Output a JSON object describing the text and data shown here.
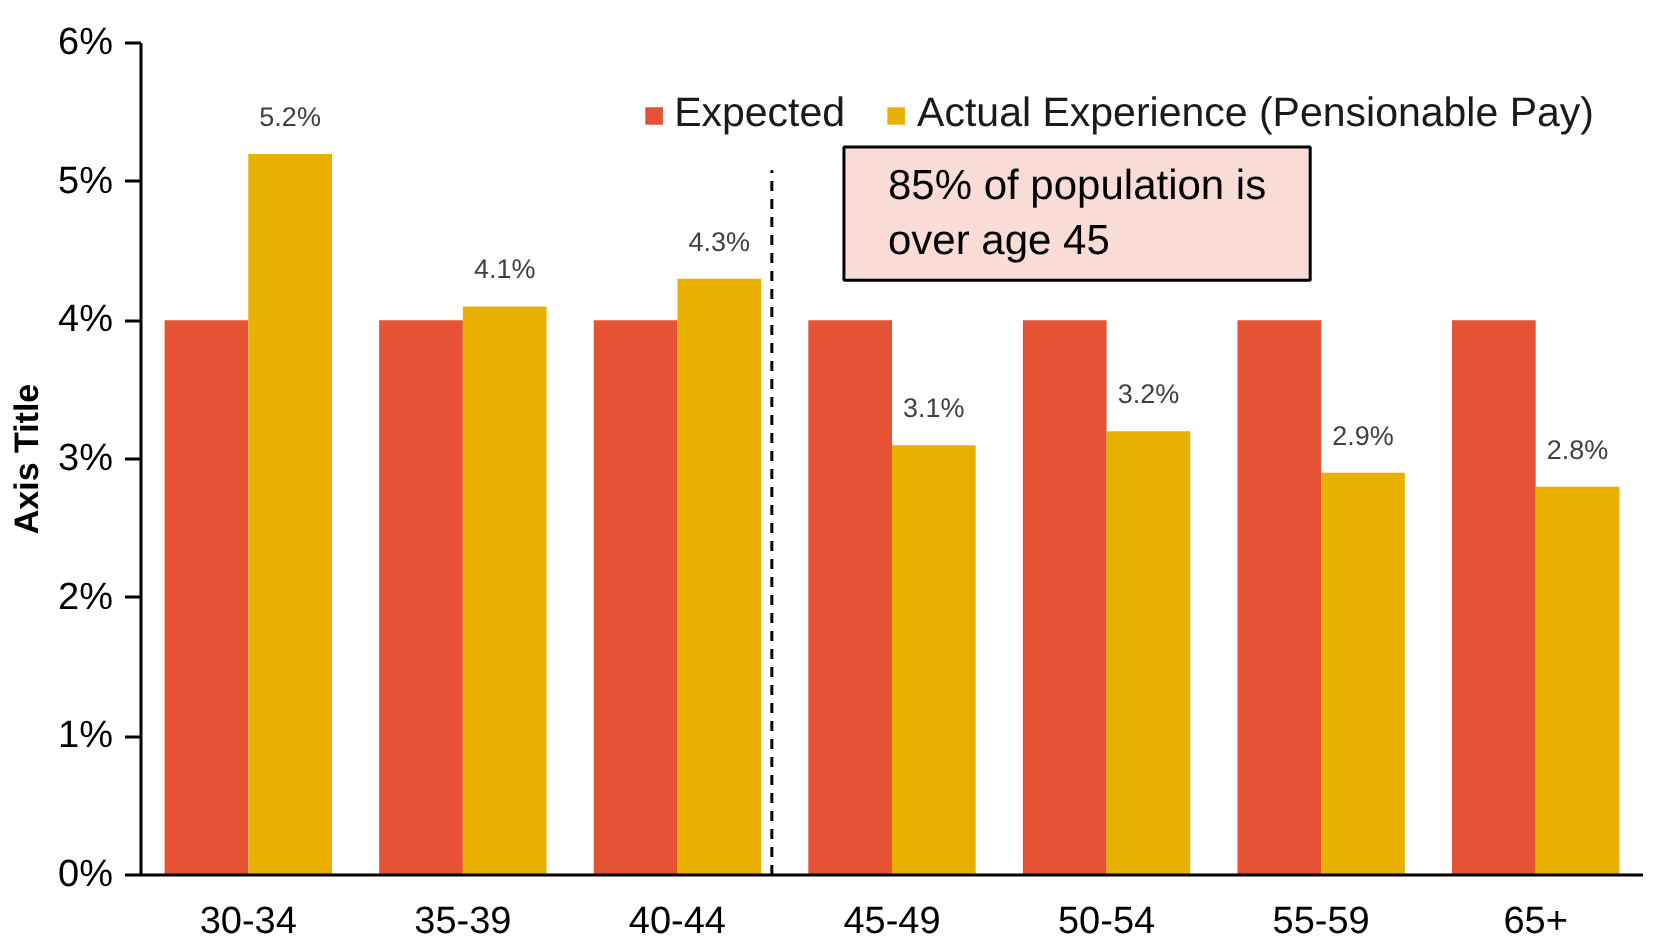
{
  "chart_data": {
    "type": "bar",
    "ylabel": "Axis Title",
    "categories": [
      "30-34",
      "35-39",
      "40-44",
      "45-49",
      "50-54",
      "55-59",
      "65+"
    ],
    "series": [
      {
        "name": "Expected",
        "color": "#e55234",
        "values": [
          4,
          4,
          4,
          4,
          4,
          4,
          4
        ]
      },
      {
        "name": "Actual Experience (Pensionable Pay)",
        "color": "#eab000",
        "values": [
          5.2,
          4.1,
          4.3,
          3.1,
          3.2,
          2.9,
          2.8
        ],
        "value_labels": [
          "5.2%",
          "4.1%",
          "4.3%",
          "3.1%",
          "3.2%",
          "2.9%",
          "2.8%"
        ]
      }
    ],
    "ylim": [
      0,
      6
    ],
    "yticks": [
      {
        "value": 0,
        "label": "0%"
      },
      {
        "value": 1,
        "label": "1%"
      },
      {
        "value": 2,
        "label": "2%"
      },
      {
        "value": 3,
        "label": "3%"
      },
      {
        "value": 4,
        "label": "4%"
      },
      {
        "value": 5,
        "label": "5%"
      },
      {
        "value": 6,
        "label": "6%"
      }
    ],
    "legend": "top right",
    "annotations": [
      "85% of population is over age 45"
    ]
  }
}
